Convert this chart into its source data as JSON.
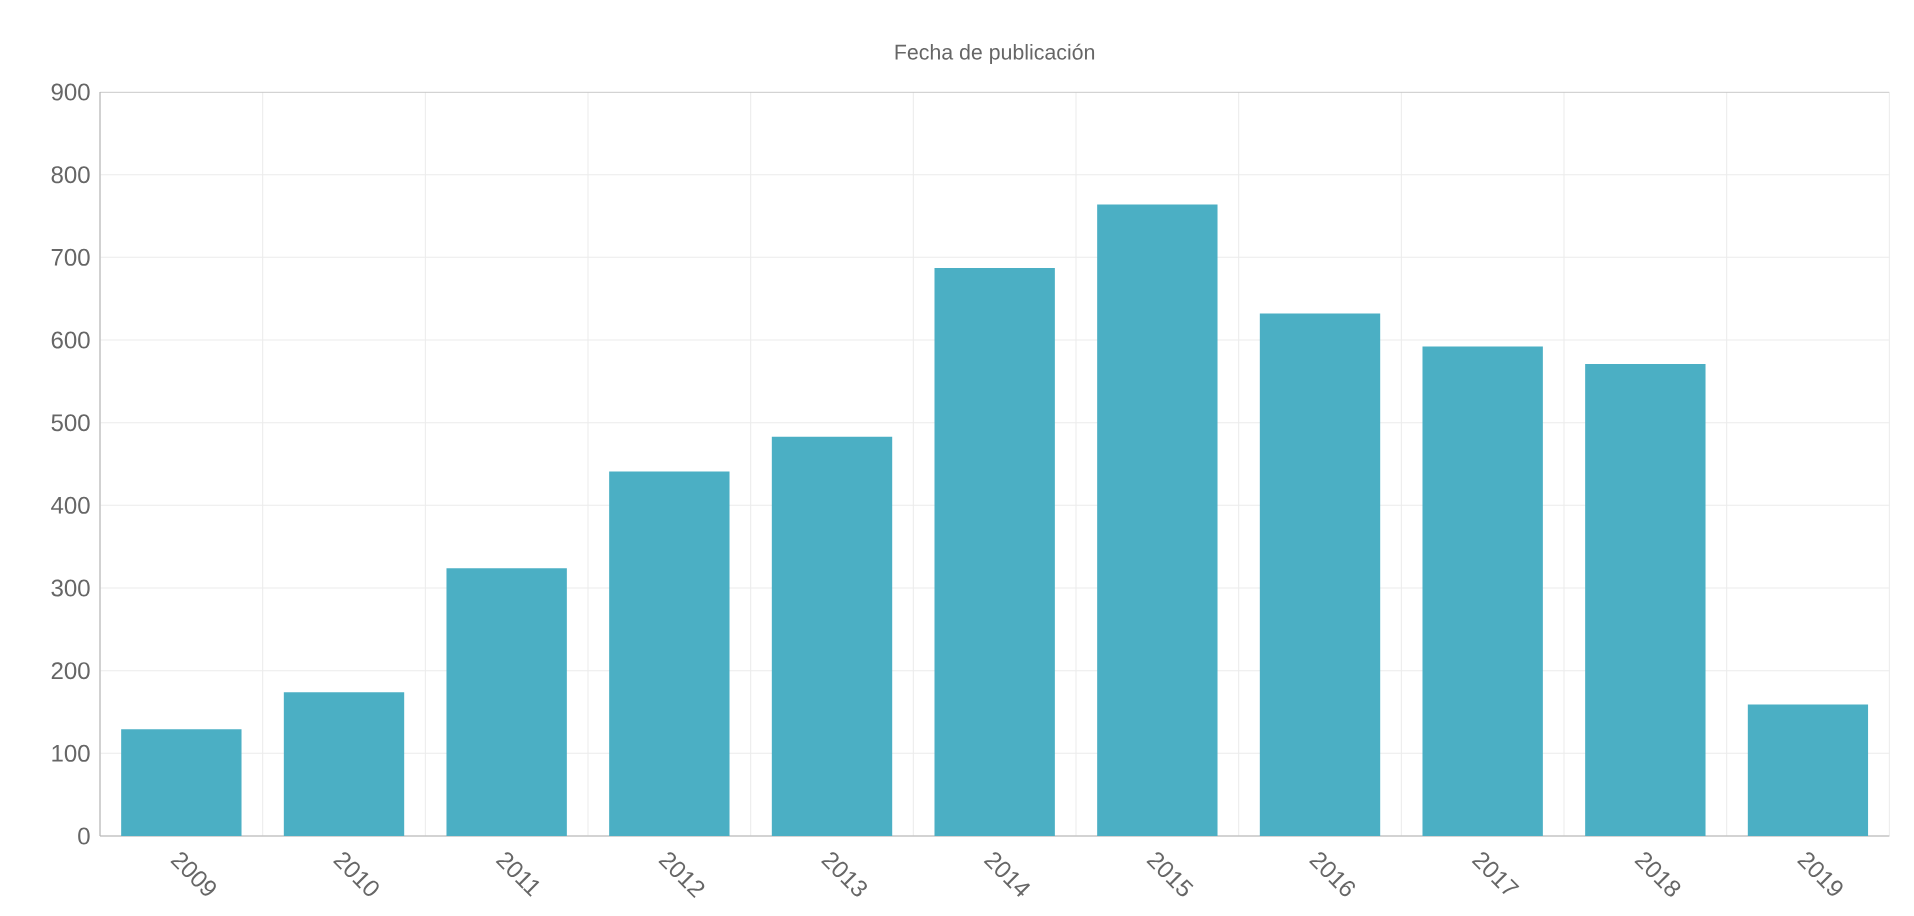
{
  "chart_data": {
    "type": "bar",
    "title": "Fecha de publicación",
    "categories": [
      "2009",
      "2010",
      "2011",
      "2012",
      "2013",
      "2014",
      "2015",
      "2016",
      "2017",
      "2018",
      "2019"
    ],
    "values": [
      129,
      174,
      324,
      441,
      483,
      687,
      764,
      632,
      592,
      571,
      159
    ],
    "color": "#4bafc4",
    "ylim": [
      0,
      900
    ],
    "yticks": [
      0,
      100,
      200,
      300,
      400,
      500,
      600,
      700,
      800,
      900
    ],
    "grid": true
  }
}
